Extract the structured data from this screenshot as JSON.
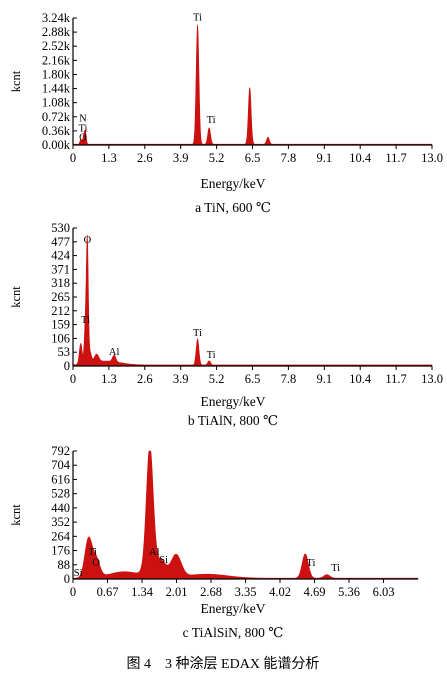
{
  "figure_caption": "图 4　3 种涂层 EDAX 能谱分析",
  "colors": {
    "spectrum": "#cc1111",
    "axes": "#000000"
  },
  "chart_data": [
    {
      "type": "area",
      "caption": "a TiN, 600 ℃",
      "xlabel": "Energy/keV",
      "ylabel": "kcnt",
      "xlim": [
        0,
        13.0
      ],
      "ylim": [
        0,
        3.24
      ],
      "xticks": [
        "0",
        "1.3",
        "2.6",
        "3.9",
        "5.2",
        "6.5",
        "7.8",
        "9.1",
        "10.4",
        "11.7",
        "13.0"
      ],
      "xtick_values": [
        0,
        1.3,
        2.6,
        3.9,
        5.2,
        6.5,
        7.8,
        9.1,
        10.4,
        11.7,
        13.0
      ],
      "yticks": [
        "0.00k",
        "0.36k",
        "0.72k",
        "1.08k",
        "1.44k",
        "1.80k",
        "2.16k",
        "2.52k",
        "2.88k",
        "3.24k"
      ],
      "ytick_values": [
        0,
        0.36,
        0.72,
        1.08,
        1.44,
        1.8,
        2.16,
        2.52,
        2.88,
        3.24
      ],
      "baseline": 0.02,
      "peaks": [
        {
          "x": 0.28,
          "y": 0.12,
          "w": 0.03
        },
        {
          "x": 0.39,
          "y": 0.22,
          "w": 0.035
        },
        {
          "x": 0.45,
          "y": 0.3,
          "w": 0.03
        },
        {
          "x": 4.51,
          "y": 3.05,
          "w": 0.05
        },
        {
          "x": 4.93,
          "y": 0.42,
          "w": 0.05
        },
        {
          "x": 6.4,
          "y": 1.45,
          "w": 0.05
        },
        {
          "x": 7.06,
          "y": 0.18,
          "w": 0.05
        }
      ],
      "annotations": [
        {
          "text": "N",
          "x": 0.36,
          "y": 0.6
        },
        {
          "text": "Ti",
          "x": 0.36,
          "y": 0.34
        },
        {
          "text": "O",
          "x": 0.36,
          "y": 0.12
        },
        {
          "text": "Ti",
          "x": 4.51,
          "y": 3.17
        },
        {
          "text": "Ti",
          "x": 5.0,
          "y": 0.56
        }
      ]
    },
    {
      "type": "area",
      "caption": "b TiAlN, 800 ℃",
      "xlabel": "Energy/keV",
      "ylabel": "kcnt",
      "xlim": [
        0,
        13.0
      ],
      "ylim": [
        0,
        530
      ],
      "xticks": [
        "0",
        "1.3",
        "2.6",
        "3.9",
        "5.2",
        "6.5",
        "7.8",
        "9.1",
        "10.4",
        "11.7",
        "13.0"
      ],
      "xtick_values": [
        0,
        1.3,
        2.6,
        3.9,
        5.2,
        6.5,
        7.8,
        9.1,
        10.4,
        11.7,
        13.0
      ],
      "yticks": [
        "0",
        "53",
        "106",
        "159",
        "212",
        "265",
        "318",
        "371",
        "424",
        "477",
        "530"
      ],
      "ytick_values": [
        0,
        53,
        106,
        159,
        212,
        265,
        318,
        371,
        424,
        477,
        530
      ],
      "baseline": 4,
      "peaks": [
        {
          "x": 0.28,
          "y": 80,
          "w": 0.05
        },
        {
          "x": 0.45,
          "y": 150,
          "w": 0.04
        },
        {
          "x": 0.52,
          "y": 455,
          "w": 0.035
        },
        {
          "x": 0.62,
          "y": 40,
          "w": 0.05
        },
        {
          "x": 0.85,
          "y": 30,
          "w": 0.08
        },
        {
          "x": 1.49,
          "y": 25,
          "w": 0.06
        },
        {
          "x": 1.2,
          "y": 15,
          "w": 0.5
        },
        {
          "x": 4.51,
          "y": 100,
          "w": 0.05
        },
        {
          "x": 4.93,
          "y": 16,
          "w": 0.05
        }
      ],
      "annotations": [
        {
          "text": "O",
          "x": 0.52,
          "y": 472
        },
        {
          "text": "Ti",
          "x": 0.45,
          "y": 165
        },
        {
          "text": "Al",
          "x": 1.49,
          "y": 42
        },
        {
          "text": "Ti",
          "x": 4.51,
          "y": 115
        },
        {
          "text": "Ti",
          "x": 5.0,
          "y": 30
        }
      ]
    },
    {
      "type": "area",
      "caption": "c TiAlSiN, 800 ℃",
      "xlabel": "Energy/keV",
      "ylabel": "kcnt",
      "xlim": [
        0,
        6.7
      ],
      "ylim": [
        0,
        792
      ],
      "xticks": [
        "0",
        "0.67",
        "1.34",
        "2.01",
        "2.68",
        "3.35",
        "4.02",
        "4.69",
        "5.36",
        "6.03"
      ],
      "xtick_values": [
        0,
        0.67,
        1.34,
        2.01,
        2.68,
        3.35,
        4.02,
        4.69,
        5.36,
        6.03
      ],
      "yticks": [
        "0",
        "88",
        "176",
        "264",
        "352",
        "440",
        "528",
        "616",
        "704",
        "792"
      ],
      "ytick_values": [
        0,
        88,
        176,
        264,
        352,
        440,
        528,
        616,
        704,
        792
      ],
      "baseline": 5,
      "peaks": [
        {
          "x": 0.3,
          "y": 240,
          "w": 0.07
        },
        {
          "x": 0.45,
          "y": 110,
          "w": 0.07
        },
        {
          "x": 1.0,
          "y": 40,
          "w": 0.3
        },
        {
          "x": 1.49,
          "y": 720,
          "w": 0.065
        },
        {
          "x": 1.55,
          "y": 100,
          "w": 0.12
        },
        {
          "x": 1.74,
          "y": 70,
          "w": 0.08
        },
        {
          "x": 2.0,
          "y": 140,
          "w": 0.1
        },
        {
          "x": 2.6,
          "y": 25,
          "w": 0.4
        },
        {
          "x": 4.51,
          "y": 150,
          "w": 0.06
        },
        {
          "x": 4.93,
          "y": 22,
          "w": 0.06
        }
      ],
      "annotations": [
        {
          "text": "Si",
          "x": 0.1,
          "y": 20
        },
        {
          "text": "Ti",
          "x": 0.38,
          "y": 150
        },
        {
          "text": "O",
          "x": 0.45,
          "y": 85
        },
        {
          "text": "Al",
          "x": 1.58,
          "y": 150
        },
        {
          "text": "Si",
          "x": 1.76,
          "y": 100
        },
        {
          "text": "Ti",
          "x": 4.62,
          "y": 80
        },
        {
          "text": "Ti",
          "x": 5.1,
          "y": 50
        }
      ]
    }
  ]
}
